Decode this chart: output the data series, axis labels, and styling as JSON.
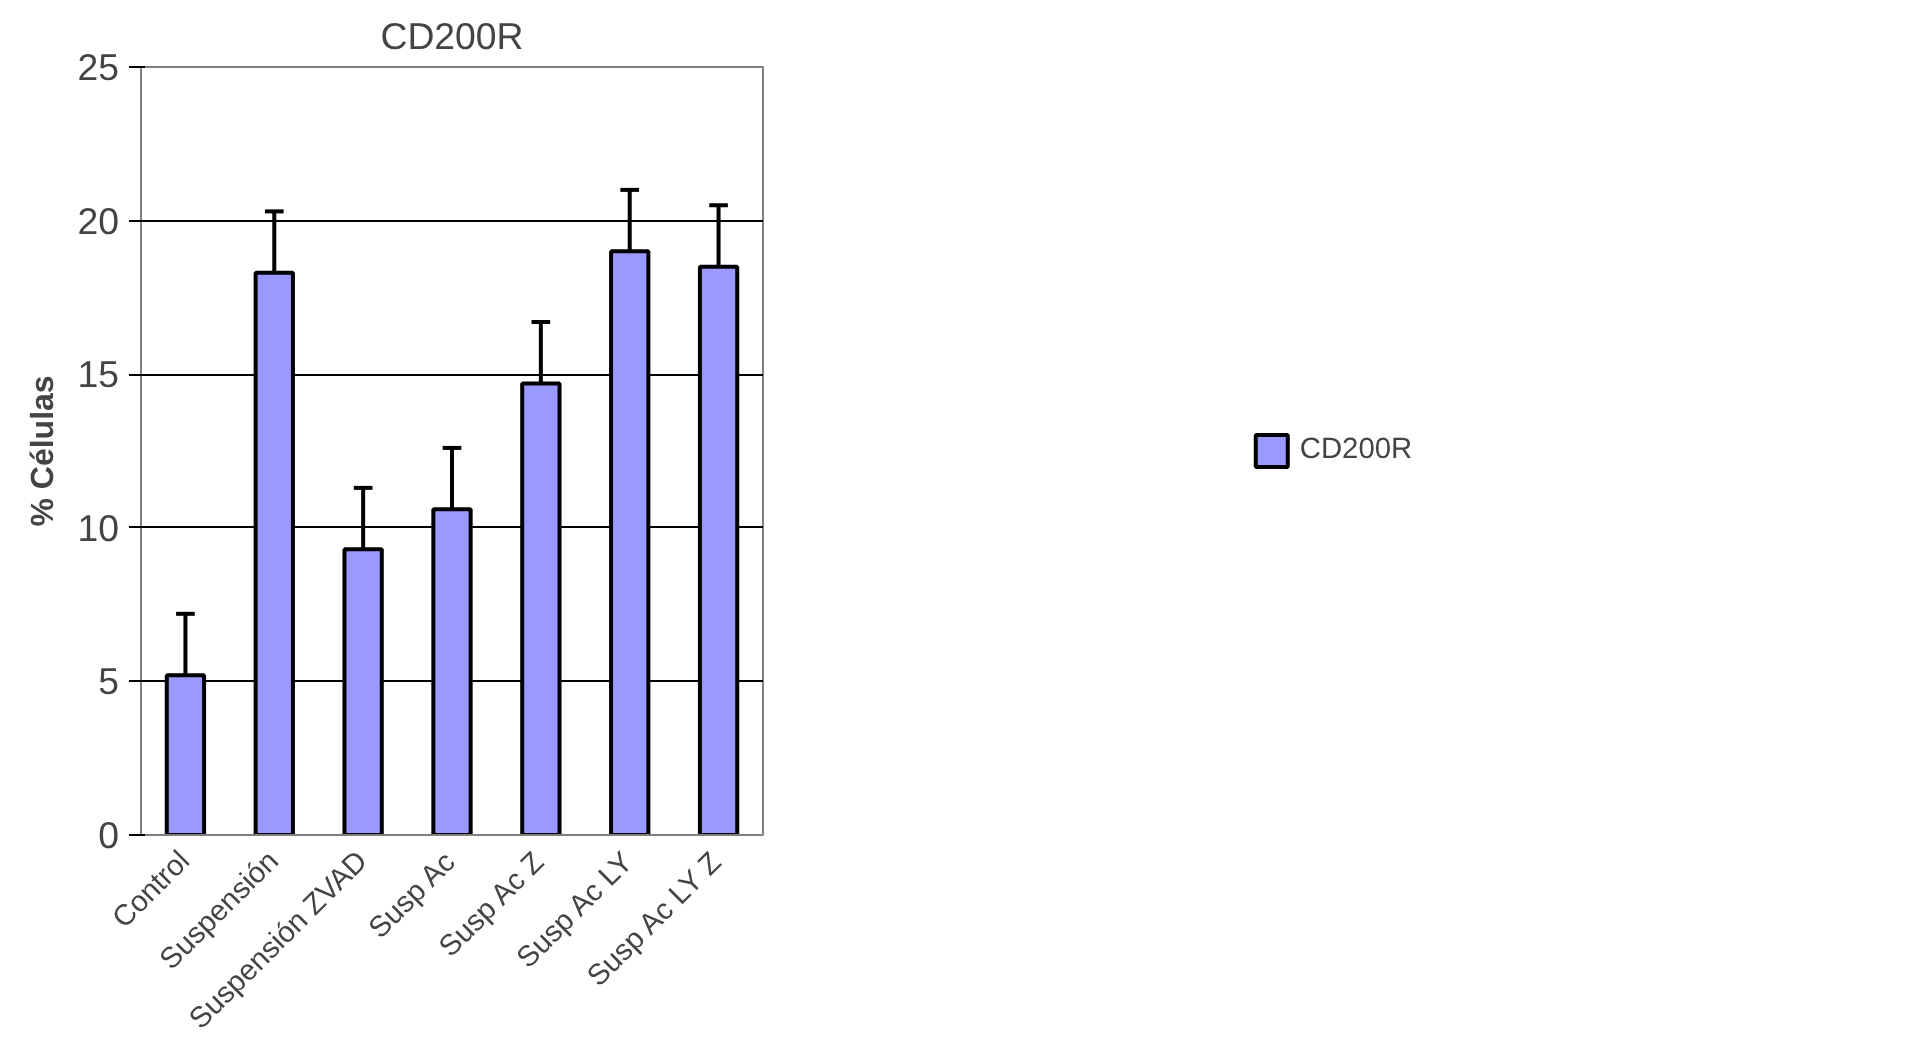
{
  "chart_data": {
    "type": "bar",
    "title": "CD200R",
    "ylabel": "% Células",
    "categories": [
      "Control",
      "Suspensión",
      "Suspensión ZVAD",
      "Susp Ac",
      "Susp Ac Z",
      "Susp Ac LY",
      "Susp Ac LY Z"
    ],
    "series": [
      {
        "name": "CD200R",
        "color": "#9999ff",
        "values": [
          5.2,
          18.3,
          9.3,
          10.6,
          14.7,
          19.0,
          18.5
        ],
        "errors": [
          [
            5.2,
            7.2
          ],
          [
            18.3,
            20.3
          ],
          [
            9.3,
            11.3
          ],
          [
            10.6,
            12.6
          ],
          [
            14.7,
            16.7
          ],
          [
            19.0,
            21.0
          ],
          [
            18.5,
            20.5
          ]
        ]
      }
    ],
    "ylim": [
      0,
      25
    ],
    "yticks": [
      0,
      5,
      10,
      15,
      20,
      25
    ],
    "grid": "y",
    "legend": "right"
  }
}
